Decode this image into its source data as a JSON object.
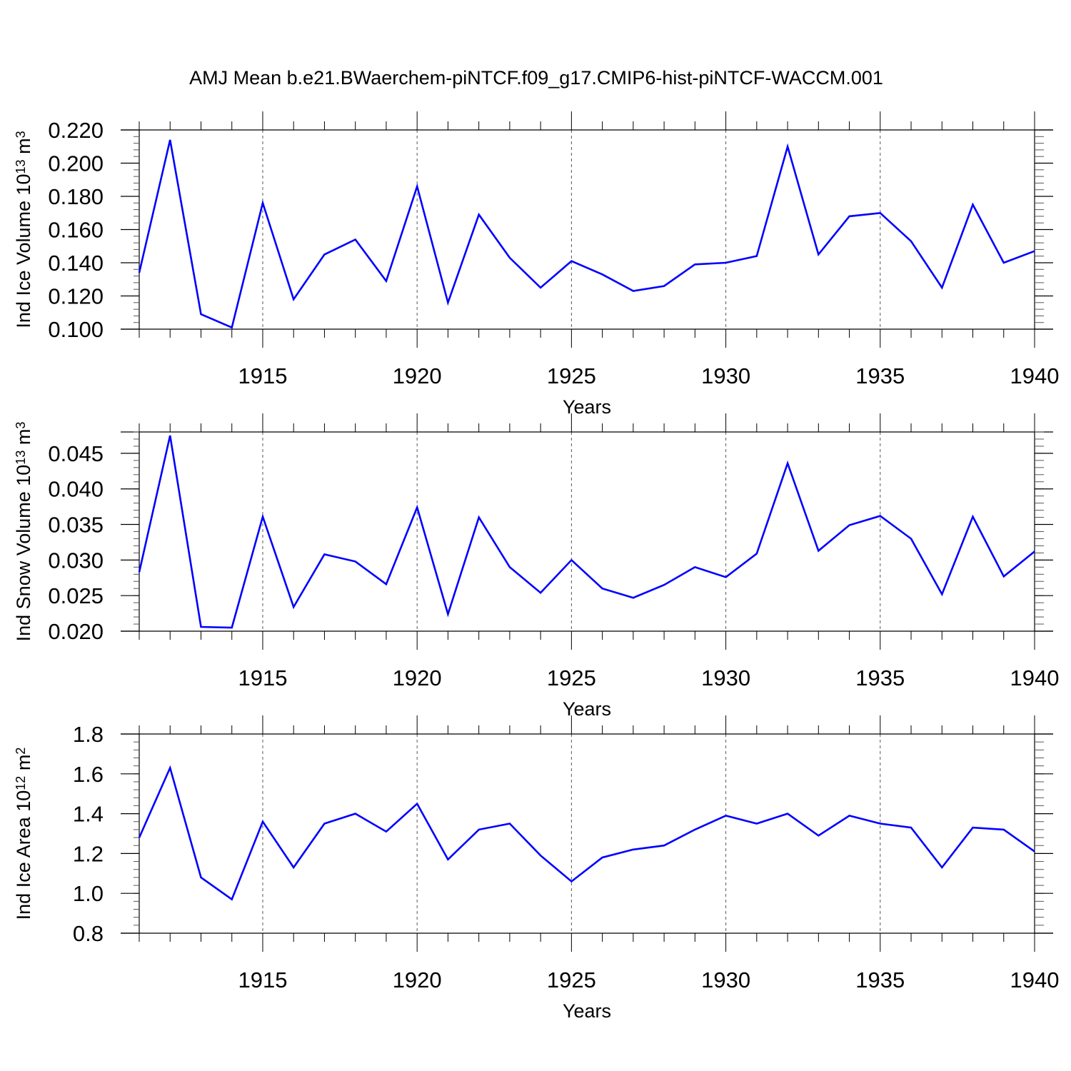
{
  "title": "AMJ Mean b.e21.BWaerchem-piNTCF.f09_g17.CMIP6-hist-piNTCF-WACCM.001",
  "line_color": "#0000ff",
  "chart_data": [
    {
      "type": "line",
      "ylabel_text": "Ind Ice Volume 10",
      "ylabel_exp": "13",
      "ylabel_unit": " m",
      "ylabel_unit_exp": "3",
      "xlabel": "Years",
      "xlim": [
        1911,
        1940
      ],
      "ylim": [
        0.1,
        0.22
      ],
      "yticks": [
        0.1,
        0.12,
        0.14,
        0.16,
        0.18,
        0.2,
        0.22
      ],
      "ytick_labels": [
        "0.100",
        "0.120",
        "0.140",
        "0.160",
        "0.180",
        "0.200",
        "0.220"
      ],
      "yminor_step": 0.004,
      "xticks": [
        1915,
        1920,
        1925,
        1930,
        1935,
        1940
      ],
      "xtick_labels": [
        "1915",
        "1920",
        "1925",
        "1930",
        "1935",
        "1940"
      ],
      "x": [
        1911,
        1912,
        1913,
        1914,
        1915,
        1916,
        1917,
        1918,
        1919,
        1920,
        1921,
        1922,
        1923,
        1924,
        1925,
        1926,
        1927,
        1928,
        1929,
        1930,
        1931,
        1932,
        1933,
        1934,
        1935,
        1936,
        1937,
        1938,
        1939,
        1940
      ],
      "values": [
        0.134,
        0.214,
        0.109,
        0.101,
        0.176,
        0.118,
        0.145,
        0.154,
        0.129,
        0.186,
        0.116,
        0.169,
        0.143,
        0.125,
        0.141,
        0.133,
        0.123,
        0.126,
        0.139,
        0.14,
        0.144,
        0.21,
        0.145,
        0.168,
        0.17,
        0.153,
        0.125,
        0.175,
        0.14,
        0.147
      ]
    },
    {
      "type": "line",
      "ylabel_text": "Ind Snow Volume 10",
      "ylabel_exp": "13",
      "ylabel_unit": " m",
      "ylabel_unit_exp": "3",
      "xlabel": "Years",
      "xlim": [
        1911,
        1940
      ],
      "ylim": [
        0.02,
        0.048
      ],
      "yticks": [
        0.02,
        0.025,
        0.03,
        0.035,
        0.04,
        0.045
      ],
      "ytick_labels": [
        "0.020",
        "0.025",
        "0.030",
        "0.035",
        "0.040",
        "0.045"
      ],
      "yminor_step": 0.001,
      "xticks": [
        1915,
        1920,
        1925,
        1930,
        1935,
        1940
      ],
      "xtick_labels": [
        "1915",
        "1920",
        "1925",
        "1930",
        "1935",
        "1940"
      ],
      "x": [
        1911,
        1912,
        1913,
        1914,
        1915,
        1916,
        1917,
        1918,
        1919,
        1920,
        1921,
        1922,
        1923,
        1924,
        1925,
        1926,
        1927,
        1928,
        1929,
        1930,
        1931,
        1932,
        1933,
        1934,
        1935,
        1936,
        1937,
        1938,
        1939,
        1940
      ],
      "values": [
        0.0283,
        0.0475,
        0.0206,
        0.0205,
        0.0361,
        0.0234,
        0.0308,
        0.0298,
        0.0266,
        0.0374,
        0.0224,
        0.036,
        0.029,
        0.0254,
        0.03,
        0.026,
        0.0247,
        0.0265,
        0.029,
        0.0276,
        0.0309,
        0.0436,
        0.0313,
        0.0349,
        0.0362,
        0.033,
        0.0252,
        0.0361,
        0.0277,
        0.0312
      ]
    },
    {
      "type": "line",
      "ylabel_text": "Ind Ice Area 10",
      "ylabel_exp": "12",
      "ylabel_unit": " m",
      "ylabel_unit_exp": "2",
      "xlabel": "Years",
      "xlim": [
        1911,
        1940
      ],
      "ylim": [
        0.8,
        1.8
      ],
      "yticks": [
        0.8,
        1.0,
        1.2,
        1.4,
        1.6,
        1.8
      ],
      "ytick_labels": [
        "0.8",
        "1.0",
        "1.2",
        "1.4",
        "1.6",
        "1.8"
      ],
      "yminor_step": 0.04,
      "xticks": [
        1915,
        1920,
        1925,
        1930,
        1935,
        1940
      ],
      "xtick_labels": [
        "1915",
        "1920",
        "1925",
        "1930",
        "1935",
        "1940"
      ],
      "x": [
        1911,
        1912,
        1913,
        1914,
        1915,
        1916,
        1917,
        1918,
        1919,
        1920,
        1921,
        1922,
        1923,
        1924,
        1925,
        1926,
        1927,
        1928,
        1929,
        1930,
        1931,
        1932,
        1933,
        1934,
        1935,
        1936,
        1937,
        1938,
        1939,
        1940
      ],
      "values": [
        1.28,
        1.63,
        1.08,
        0.97,
        1.36,
        1.13,
        1.35,
        1.4,
        1.31,
        1.45,
        1.17,
        1.32,
        1.35,
        1.19,
        1.06,
        1.18,
        1.22,
        1.24,
        1.32,
        1.39,
        1.35,
        1.4,
        1.29,
        1.39,
        1.35,
        1.33,
        1.13,
        1.33,
        1.32,
        1.21
      ]
    }
  ]
}
